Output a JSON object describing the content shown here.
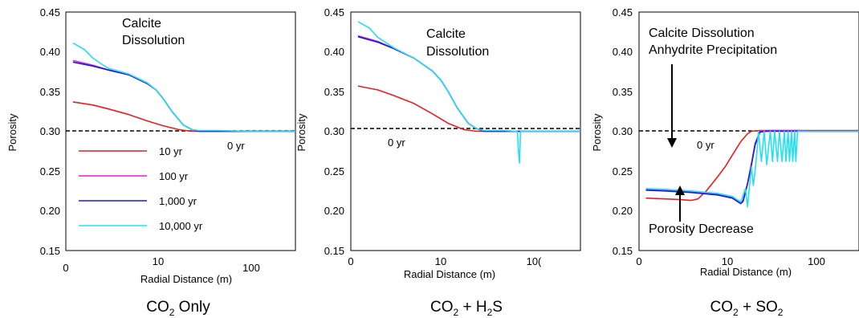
{
  "figure": {
    "captions": [
      {
        "base": "CO",
        "sub": "2",
        "rest": " Only"
      },
      {
        "base": "CO",
        "sub": "2",
        "mid": " + H",
        "sub2": "2",
        "rest": "S"
      },
      {
        "base": "CO",
        "sub": "2",
        "mid": " + SO",
        "sub2": "2",
        "rest": ""
      }
    ]
  },
  "chart_data": [
    {
      "type": "line",
      "title": "",
      "xlabel": "Radial Distance (m)",
      "ylabel": "Porosity",
      "xscale": "log",
      "xlim": [
        1,
        350
      ],
      "ylim": [
        0.15,
        0.45
      ],
      "x_ticks": [
        "0",
        "10",
        "100"
      ],
      "y_ticks": [
        "0.15",
        "0.20",
        "0.25",
        "0.30",
        "0.35",
        "0.40",
        "0.45"
      ],
      "legend_position": "lower-left",
      "annotations": [
        "Calcite",
        "Dissolution",
        "0 yr"
      ],
      "reference_line": {
        "label": "0 yr",
        "y": 0.298,
        "style": "dashed"
      },
      "series": [
        {
          "name": "10 yr",
          "color": "#ee1c1c",
          "x": [
            1.2,
            2,
            3,
            5,
            8,
            12,
            18,
            25,
            30,
            50,
            100,
            350
          ],
          "y": [
            0.337,
            0.333,
            0.328,
            0.321,
            0.313,
            0.307,
            0.302,
            0.3,
            0.3,
            0.3,
            0.3,
            0.3
          ]
        },
        {
          "name": "100 yr",
          "color": "#e01ee0",
          "x": [
            1.2,
            2,
            3,
            5,
            8,
            10,
            12,
            15,
            20,
            25,
            30,
            50,
            100,
            350
          ],
          "y": [
            0.389,
            0.383,
            0.377,
            0.371,
            0.36,
            0.352,
            0.341,
            0.325,
            0.308,
            0.302,
            0.3,
            0.3,
            0.3,
            0.3
          ]
        },
        {
          "name": "1,000 yr",
          "color": "#1a1ad8",
          "x": [
            1.2,
            2,
            3,
            5,
            8,
            10,
            12,
            15,
            20,
            25,
            30,
            50,
            100,
            350
          ],
          "y": [
            0.387,
            0.382,
            0.377,
            0.371,
            0.36,
            0.352,
            0.341,
            0.325,
            0.308,
            0.302,
            0.3,
            0.3,
            0.3,
            0.3
          ]
        },
        {
          "name": "10,000 yr",
          "color": "#22e0f0",
          "x": [
            1.2,
            1.6,
            2,
            2.6,
            3,
            5,
            8,
            10,
            12,
            15,
            20,
            25,
            30,
            50,
            100,
            350
          ],
          "y": [
            0.411,
            0.403,
            0.392,
            0.383,
            0.379,
            0.372,
            0.361,
            0.352,
            0.341,
            0.325,
            0.308,
            0.302,
            0.301,
            0.301,
            0.3,
            0.3
          ]
        }
      ]
    },
    {
      "type": "line",
      "title": "",
      "xlabel": "Radial Distance (m)",
      "ylabel": "Porosity",
      "xscale": "log",
      "xlim": [
        1,
        350
      ],
      "ylim": [
        0.15,
        0.45
      ],
      "x_ticks": [
        "0",
        "10",
        "10("
      ],
      "y_ticks": [
        "0.15",
        "0.20",
        "0.25",
        "0.30",
        "0.35",
        "0.40",
        "0.45"
      ],
      "annotations": [
        "Calcite",
        "Dissolution",
        "0 yr"
      ],
      "reference_line": {
        "label": "0 yr",
        "y": 0.298,
        "style": "dashed"
      },
      "series": [
        {
          "name": "10 yr",
          "color": "#ee1c1c",
          "x": [
            1.2,
            2,
            3,
            5,
            8,
            12,
            18,
            25,
            30,
            50,
            100,
            350
          ],
          "y": [
            0.357,
            0.352,
            0.345,
            0.335,
            0.322,
            0.31,
            0.302,
            0.3,
            0.3,
            0.3,
            0.3,
            0.3
          ]
        },
        {
          "name": "100 yr",
          "color": "#e01ee0",
          "x": [
            1.2,
            2,
            3,
            5,
            8,
            10,
            12,
            15,
            20,
            25,
            30,
            50,
            100,
            350
          ],
          "y": [
            0.42,
            0.413,
            0.404,
            0.392,
            0.376,
            0.364,
            0.35,
            0.33,
            0.31,
            0.303,
            0.3,
            0.3,
            0.3,
            0.3
          ]
        },
        {
          "name": "1,000 yr",
          "color": "#1a1ad8",
          "x": [
            1.2,
            2,
            3,
            5,
            8,
            10,
            12,
            15,
            20,
            25,
            30,
            50,
            100,
            350
          ],
          "y": [
            0.419,
            0.412,
            0.404,
            0.392,
            0.376,
            0.364,
            0.35,
            0.33,
            0.31,
            0.303,
            0.3,
            0.3,
            0.3,
            0.3
          ]
        },
        {
          "name": "10,000 yr",
          "color": "#22e0f0",
          "x": [
            1.2,
            1.6,
            2,
            3,
            5,
            8,
            10,
            12,
            15,
            20,
            25,
            30,
            50,
            70,
            72,
            74,
            76,
            78,
            100,
            350
          ],
          "y": [
            0.438,
            0.43,
            0.418,
            0.405,
            0.392,
            0.376,
            0.364,
            0.35,
            0.33,
            0.31,
            0.303,
            0.301,
            0.301,
            0.3,
            0.275,
            0.26,
            0.3,
            0.3,
            0.3,
            0.3
          ]
        }
      ]
    },
    {
      "type": "line",
      "title": "",
      "xlabel": "Radial Distance (m)",
      "ylabel": "Porosity",
      "xscale": "log",
      "xlim": [
        1,
        350
      ],
      "ylim": [
        0.15,
        0.45
      ],
      "x_ticks": [
        "0",
        "10",
        "100"
      ],
      "y_ticks": [
        "0.15",
        "0.20",
        "0.25",
        "0.30",
        "0.35",
        "0.40",
        "0.45"
      ],
      "annotations": [
        "Calcite Dissolution",
        "Anhydrite Precipitation",
        "0 yr",
        "Porosity Decrease"
      ],
      "reference_line": {
        "label": "0 yr",
        "y": 0.295,
        "style": "dashed"
      },
      "series": [
        {
          "name": "10 yr",
          "color": "#ee1c1c",
          "x": [
            1.2,
            2,
            3,
            4,
            4.8,
            6,
            8,
            10,
            12,
            15,
            18,
            20,
            25,
            50,
            100,
            350
          ],
          "y": [
            0.216,
            0.215,
            0.214,
            0.213,
            0.215,
            0.225,
            0.242,
            0.256,
            0.27,
            0.287,
            0.297,
            0.3,
            0.301,
            0.301,
            0.301,
            0.301
          ]
        },
        {
          "name": "100 yr",
          "color": "#e01ee0",
          "x": [
            1.2,
            2,
            4,
            8,
            12,
            15,
            16,
            18,
            20,
            22,
            25,
            30,
            40,
            50,
            70,
            100,
            350
          ],
          "y": [
            0.227,
            0.226,
            0.224,
            0.221,
            0.217,
            0.21,
            0.213,
            0.235,
            0.26,
            0.285,
            0.3,
            0.301,
            0.301,
            0.301,
            0.301,
            0.3,
            0.3
          ]
        },
        {
          "name": "1,000 yr",
          "color": "#1a1ad8",
          "x": [
            1.2,
            2,
            4,
            8,
            12,
            15,
            16,
            18,
            20,
            22,
            25,
            30,
            40,
            50,
            70,
            100,
            350
          ],
          "y": [
            0.226,
            0.225,
            0.223,
            0.22,
            0.216,
            0.209,
            0.212,
            0.234,
            0.258,
            0.283,
            0.299,
            0.3,
            0.3,
            0.3,
            0.3,
            0.3,
            0.3
          ]
        },
        {
          "name": "10,000 yr",
          "color": "#22e0f0",
          "x": [
            1.2,
            2,
            4,
            8,
            12,
            15,
            17,
            18,
            19,
            20,
            21,
            22,
            23,
            24,
            26,
            28,
            30,
            33,
            35,
            37,
            40,
            42,
            45,
            48,
            50,
            53,
            55,
            58,
            60,
            63,
            65,
            68,
            70,
            100,
            350
          ],
          "y": [
            0.228,
            0.227,
            0.225,
            0.222,
            0.218,
            0.211,
            0.228,
            0.205,
            0.232,
            0.255,
            0.232,
            0.25,
            0.272,
            0.3,
            0.262,
            0.3,
            0.258,
            0.3,
            0.262,
            0.3,
            0.262,
            0.3,
            0.262,
            0.3,
            0.262,
            0.3,
            0.262,
            0.3,
            0.262,
            0.3,
            0.262,
            0.3,
            0.3,
            0.3,
            0.3
          ]
        }
      ]
    }
  ]
}
